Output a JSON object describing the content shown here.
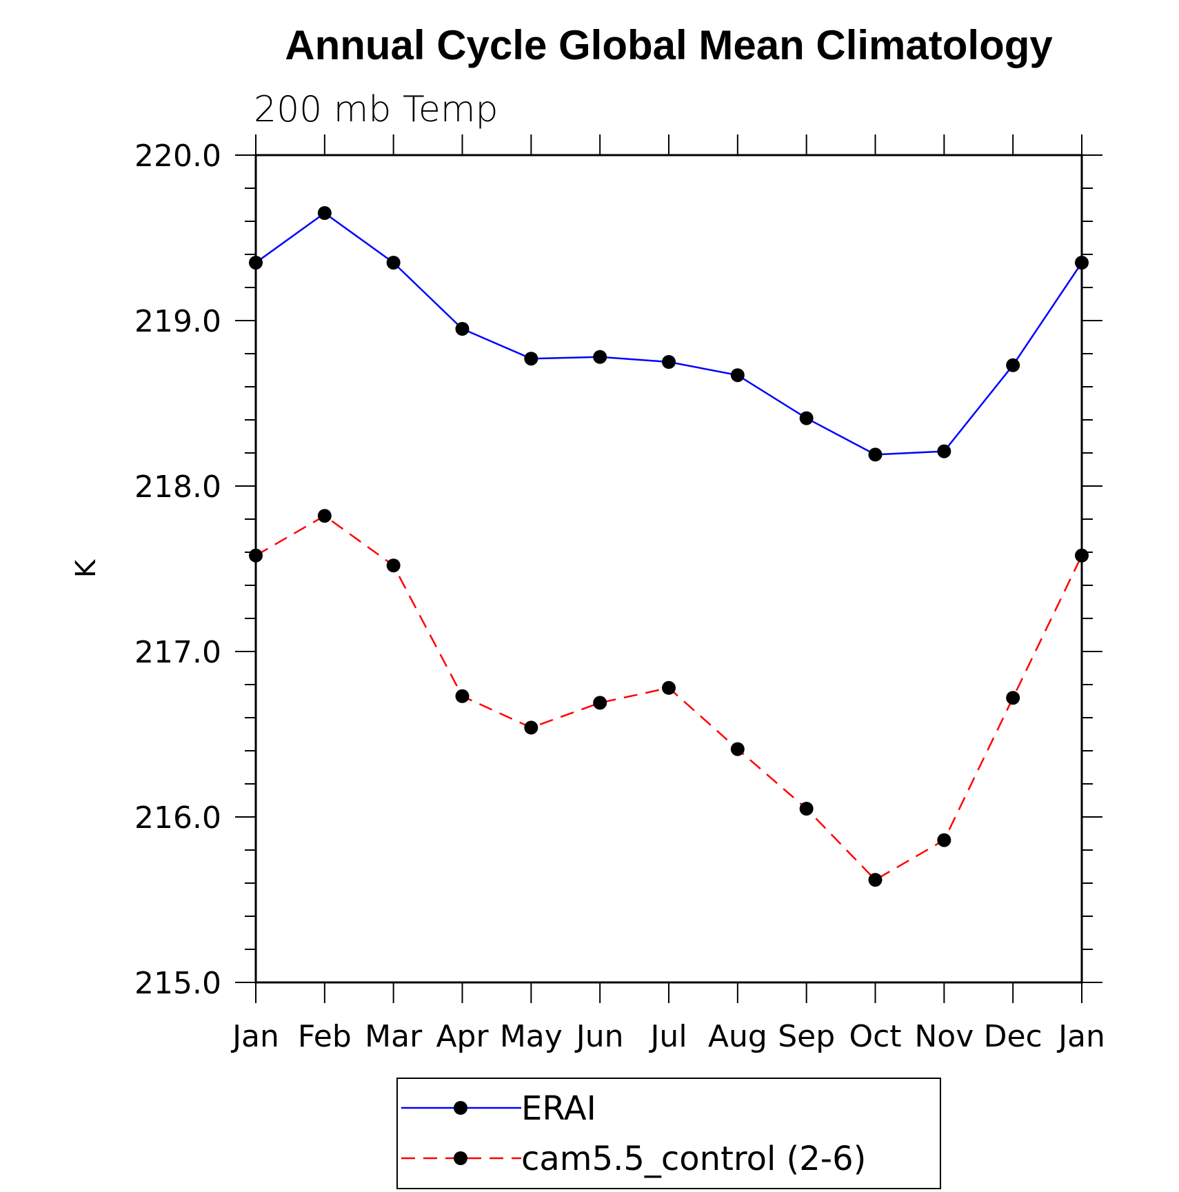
{
  "chart_data": {
    "type": "line",
    "title": "Annual Cycle Global Mean Climatology",
    "subtitle": "200 mb Temp",
    "xlabel": "",
    "ylabel": "K",
    "categories": [
      "Jan",
      "Feb",
      "Mar",
      "Apr",
      "May",
      "Jun",
      "Jul",
      "Aug",
      "Sep",
      "Oct",
      "Nov",
      "Dec",
      "Jan"
    ],
    "ylim": [
      215.0,
      220.0
    ],
    "yticks": [
      "215.0",
      "216.0",
      "217.0",
      "218.0",
      "219.0",
      "220.0"
    ],
    "grid": false,
    "legend_position": "bottom",
    "series": [
      {
        "name": "ERAI",
        "color": "#0000ff",
        "dash": "solid",
        "marker": "filled-circle",
        "values": [
          219.35,
          219.65,
          219.35,
          218.95,
          218.77,
          218.78,
          218.75,
          218.67,
          218.41,
          218.19,
          218.21,
          218.73,
          219.35
        ]
      },
      {
        "name": "cam5.5_control (2-6)",
        "color": "#ff0000",
        "dash": "dashed",
        "marker": "filled-circle",
        "values": [
          217.58,
          217.82,
          217.52,
          216.73,
          216.54,
          216.69,
          216.78,
          216.41,
          216.05,
          215.62,
          215.86,
          216.72,
          217.58
        ]
      }
    ]
  }
}
